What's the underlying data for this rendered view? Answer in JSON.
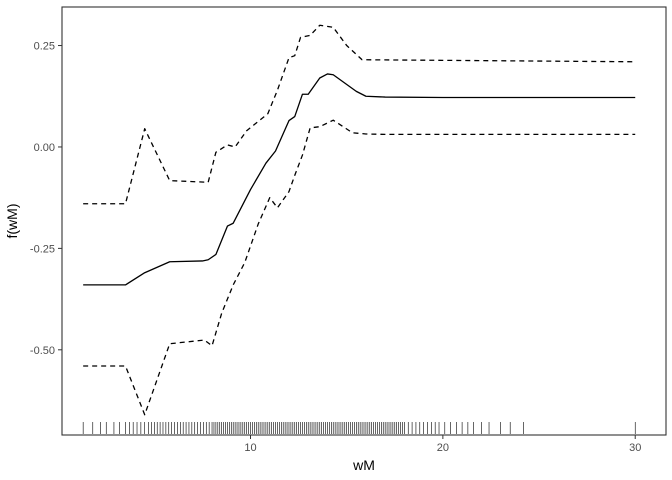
{
  "chart_data": {
    "type": "line",
    "title": "",
    "xlabel": "wM",
    "ylabel": "f(wM)",
    "xlim": [
      0.2,
      31.6
    ],
    "ylim": [
      -0.71,
      0.345
    ],
    "x_ticks": [
      10,
      20,
      30
    ],
    "x_tick_labels": [
      "10",
      "20",
      "30"
    ],
    "y_ticks": [
      0.25,
      0.0,
      -0.25,
      -0.5
    ],
    "y_tick_labels": [
      "0.25",
      "0.00",
      "-0.25",
      "-0.50"
    ],
    "grid": false,
    "legend": "none",
    "series": [
      {
        "style": "solid",
        "x": [
          1.3,
          3.5,
          4.5,
          5.8,
          7.5,
          7.8,
          8.2,
          8.8,
          9.1,
          10.0,
          10.8,
          11.3,
          12.0,
          12.3,
          12.7,
          13.0,
          13.6,
          14.0,
          14.3,
          15.5,
          16.0,
          17.0,
          20.0,
          30.0
        ],
        "y": [
          -0.34,
          -0.34,
          -0.31,
          -0.283,
          -0.281,
          -0.278,
          -0.265,
          -0.195,
          -0.188,
          -0.105,
          -0.04,
          -0.01,
          0.065,
          0.075,
          0.13,
          0.13,
          0.17,
          0.18,
          0.178,
          0.137,
          0.125,
          0.123,
          0.122,
          0.122
        ]
      },
      {
        "style": "dashed",
        "x": [
          1.3,
          3.5,
          4.5,
          5.8,
          7.8,
          8.2,
          8.8,
          9.2,
          9.8,
          10.9,
          11.4,
          12.0,
          12.3,
          12.6,
          13.1,
          13.6,
          14.3,
          15.0,
          15.8,
          30.0
        ],
        "y": [
          -0.14,
          -0.14,
          0.045,
          -0.083,
          -0.087,
          -0.013,
          0.005,
          0.0,
          0.04,
          0.082,
          0.14,
          0.22,
          0.225,
          0.27,
          0.275,
          0.3,
          0.295,
          0.25,
          0.215,
          0.21
        ]
      },
      {
        "style": "dashed",
        "x": [
          1.3,
          3.5,
          4.5,
          5.8,
          7.6,
          8.0,
          8.5,
          9.1,
          9.7,
          10.4,
          11.0,
          11.4,
          12.0,
          12.3,
          12.7,
          13.1,
          13.6,
          14.3,
          15.3,
          16.0,
          17.0,
          30.0
        ],
        "y": [
          -0.54,
          -0.54,
          -0.66,
          -0.485,
          -0.476,
          -0.49,
          -0.41,
          -0.34,
          -0.285,
          -0.19,
          -0.125,
          -0.15,
          -0.11,
          -0.07,
          -0.02,
          0.047,
          0.05,
          0.066,
          0.035,
          0.032,
          0.031,
          0.031
        ]
      }
    ],
    "rug": [
      1.3,
      1.8,
      2.2,
      2.5,
      2.9,
      3.2,
      3.5,
      3.7,
      3.9,
      4.1,
      4.3,
      4.5,
      4.7,
      4.85,
      5.0,
      5.15,
      5.3,
      5.45,
      5.6,
      5.75,
      5.9,
      6.05,
      6.2,
      6.35,
      6.5,
      6.65,
      6.8,
      6.95,
      7.1,
      7.25,
      7.4,
      7.55,
      7.7,
      7.85,
      8.0,
      8.1,
      8.2,
      8.3,
      8.4,
      8.5,
      8.6,
      8.7,
      8.8,
      8.9,
      9.0,
      9.1,
      9.2,
      9.3,
      9.4,
      9.5,
      9.6,
      9.7,
      9.8,
      9.9,
      10.0,
      10.1,
      10.2,
      10.3,
      10.4,
      10.5,
      10.6,
      10.7,
      10.8,
      10.9,
      11.0,
      11.1,
      11.2,
      11.3,
      11.4,
      11.5,
      11.6,
      11.7,
      11.8,
      11.9,
      12.0,
      12.1,
      12.2,
      12.3,
      12.4,
      12.5,
      12.6,
      12.7,
      12.8,
      12.9,
      13.0,
      13.1,
      13.2,
      13.3,
      13.4,
      13.5,
      13.6,
      13.7,
      13.8,
      13.9,
      14.0,
      14.1,
      14.2,
      14.3,
      14.4,
      14.5,
      14.6,
      14.7,
      14.8,
      14.9,
      15.0,
      15.1,
      15.2,
      15.3,
      15.4,
      15.5,
      15.6,
      15.7,
      15.8,
      15.9,
      16.0,
      16.1,
      16.2,
      16.3,
      16.4,
      16.5,
      16.6,
      16.7,
      16.8,
      16.9,
      17.0,
      17.1,
      17.2,
      17.3,
      17.4,
      17.5,
      17.6,
      17.7,
      17.8,
      17.9,
      18.0,
      18.2,
      18.4,
      18.6,
      18.8,
      19.0,
      19.2,
      19.4,
      19.6,
      19.8,
      20.1,
      20.4,
      20.7,
      21.0,
      21.3,
      21.6,
      22.0,
      22.4,
      23.0,
      23.5,
      24.2,
      30.0
    ],
    "colors": {
      "line": "#000000",
      "panel_border": "#333333",
      "tick_text": "#4d4d4d",
      "background": "#ffffff"
    }
  }
}
